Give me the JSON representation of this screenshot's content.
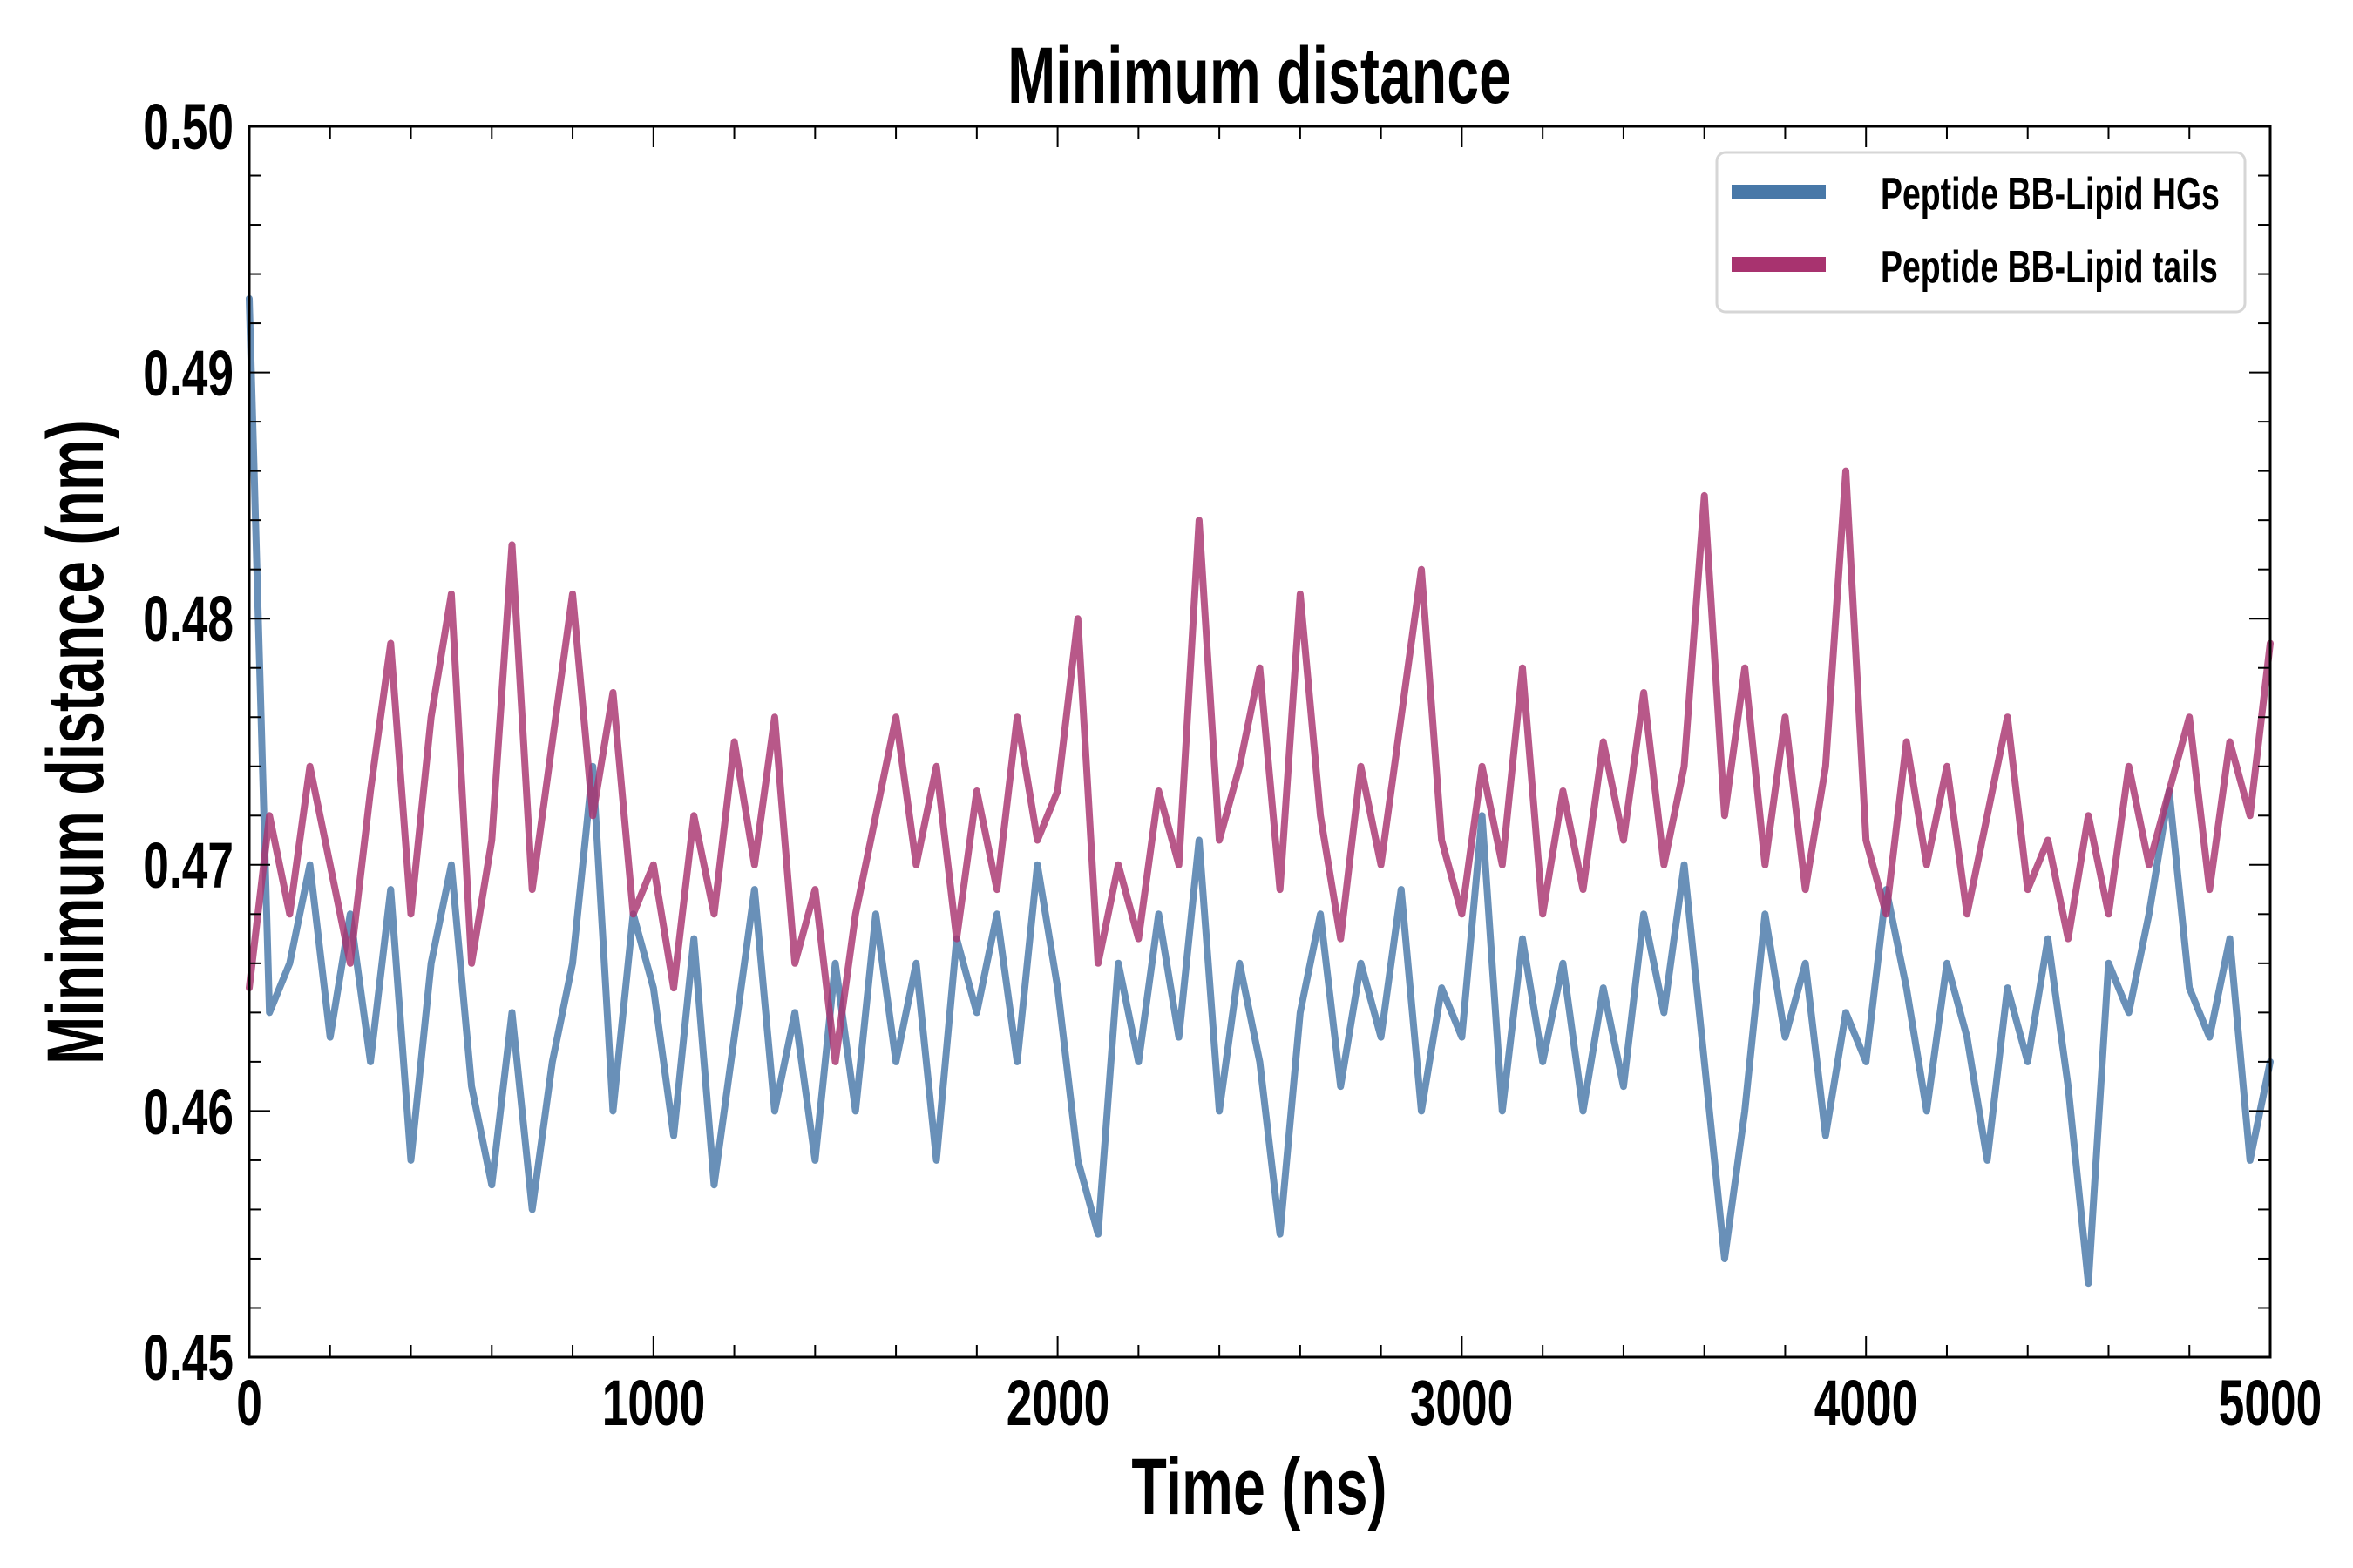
{
  "chart_data": {
    "type": "line",
    "title": "Minimum distance",
    "xlabel": "Time (ns)",
    "ylabel": "Minimum distance (nm)",
    "xlim": [
      0,
      5000
    ],
    "ylim": [
      0.45,
      0.5
    ],
    "xticks": [
      "0",
      "1000",
      "2000",
      "3000",
      "4000",
      "5000"
    ],
    "yticks": [
      "0.45",
      "0.46",
      "0.47",
      "0.48",
      "0.49",
      "0.50"
    ],
    "x_minor_step": 200,
    "y_minor_step": 0.002,
    "grid": false,
    "legend_position": "top-right",
    "x_start": 0,
    "x_step": 50,
    "series": [
      {
        "name": "Peptide BB-Lipid HGs",
        "color": "#4878a8",
        "values": [
          0.493,
          0.464,
          0.466,
          0.47,
          0.463,
          0.468,
          0.462,
          0.469,
          0.458,
          0.466,
          0.47,
          0.461,
          0.457,
          0.464,
          0.456,
          0.462,
          0.466,
          0.474,
          0.46,
          0.468,
          0.465,
          0.459,
          0.467,
          0.457,
          0.463,
          0.469,
          0.46,
          0.464,
          0.458,
          0.466,
          0.46,
          0.468,
          0.462,
          0.466,
          0.458,
          0.467,
          0.464,
          0.468,
          0.462,
          0.47,
          0.465,
          0.458,
          0.455,
          0.466,
          0.462,
          0.468,
          0.463,
          0.471,
          0.46,
          0.466,
          0.462,
          0.455,
          0.464,
          0.468,
          0.461,
          0.466,
          0.463,
          0.469,
          0.46,
          0.465,
          0.463,
          0.472,
          0.46,
          0.467,
          0.462,
          0.466,
          0.46,
          0.465,
          0.461,
          0.468,
          0.464,
          0.47,
          0.462,
          0.454,
          0.46,
          0.468,
          0.463,
          0.466,
          0.459,
          0.464,
          0.462,
          0.469,
          0.465,
          0.46,
          0.466,
          0.463,
          0.458,
          0.465,
          0.462,
          0.467,
          0.461,
          0.453,
          0.466,
          0.464,
          0.468,
          0.473,
          0.465,
          0.463,
          0.467,
          0.458,
          0.462
        ]
      },
      {
        "name": "Peptide BB-Lipid tails",
        "color": "#a8336f",
        "values": [
          0.465,
          0.472,
          0.468,
          0.474,
          0.47,
          0.466,
          0.473,
          0.479,
          0.468,
          0.476,
          0.481,
          0.466,
          0.471,
          0.483,
          0.469,
          0.475,
          0.481,
          0.472,
          0.477,
          0.468,
          0.47,
          0.465,
          0.472,
          0.468,
          0.475,
          0.47,
          0.476,
          0.466,
          0.469,
          0.462,
          0.468,
          0.472,
          0.476,
          0.47,
          0.474,
          0.467,
          0.473,
          0.469,
          0.476,
          0.471,
          0.473,
          0.48,
          0.466,
          0.47,
          0.467,
          0.473,
          0.47,
          0.484,
          0.471,
          0.474,
          0.478,
          0.469,
          0.481,
          0.472,
          0.467,
          0.474,
          0.47,
          0.476,
          0.482,
          0.471,
          0.468,
          0.474,
          0.47,
          0.478,
          0.468,
          0.473,
          0.469,
          0.475,
          0.471,
          0.477,
          0.47,
          0.474,
          0.485,
          0.472,
          0.478,
          0.47,
          0.476,
          0.469,
          0.474,
          0.486,
          0.471,
          0.468,
          0.475,
          0.47,
          0.474,
          0.468,
          0.472,
          0.476,
          0.469,
          0.471,
          0.467,
          0.472,
          0.468,
          0.474,
          0.47,
          0.473,
          0.476,
          0.469,
          0.475,
          0.472,
          0.479
        ]
      }
    ]
  }
}
